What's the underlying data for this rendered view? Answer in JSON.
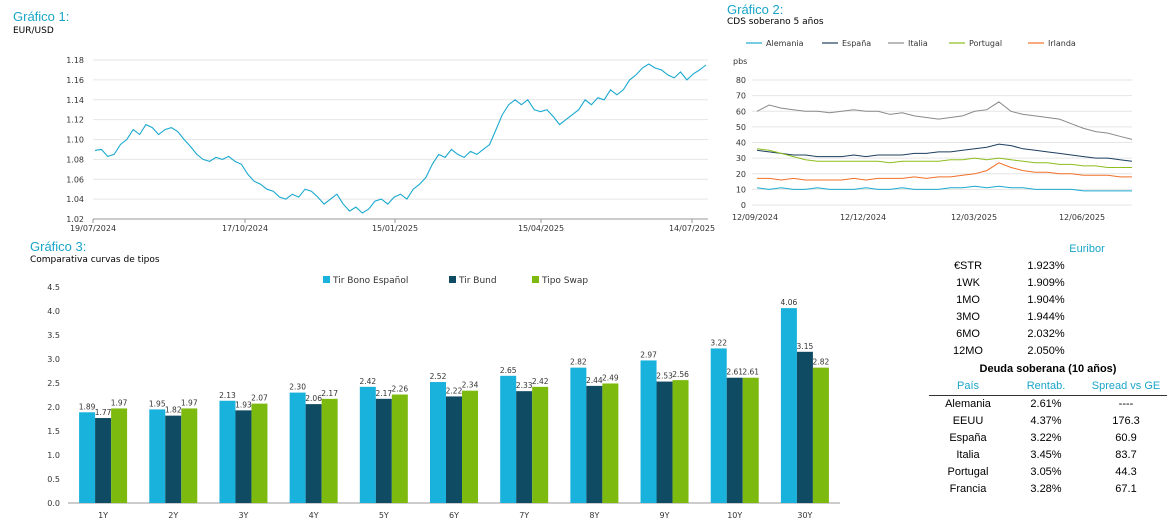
{
  "chart_data": [
    {
      "id": "g1",
      "type": "line",
      "title": "Gráfico 1:",
      "subtitle": "EUR/USD",
      "color": "#1ba9cf",
      "ylim": [
        1.02,
        1.18
      ],
      "yticks": [
        "1.02",
        "1.04",
        "1.06",
        "1.08",
        "1.10",
        "1.12",
        "1.14",
        "1.16",
        "1.18"
      ],
      "xticks": [
        "19/07/2024",
        "17/10/2024",
        "15/01/2025",
        "15/04/2025",
        "14/07/2025"
      ],
      "series": [
        {
          "values": [
            1.089,
            1.09,
            1.083,
            1.085,
            1.095,
            1.1,
            1.11,
            1.105,
            1.115,
            1.112,
            1.105,
            1.11,
            1.112,
            1.108,
            1.1,
            1.093,
            1.085,
            1.08,
            1.078,
            1.082,
            1.08,
            1.083,
            1.078,
            1.075,
            1.065,
            1.058,
            1.055,
            1.05,
            1.048,
            1.042,
            1.04,
            1.045,
            1.042,
            1.05,
            1.048,
            1.042,
            1.035,
            1.04,
            1.045,
            1.035,
            1.028,
            1.032,
            1.026,
            1.03,
            1.038,
            1.04,
            1.035,
            1.042,
            1.045,
            1.04,
            1.05,
            1.055,
            1.062,
            1.075,
            1.085,
            1.082,
            1.09,
            1.085,
            1.082,
            1.088,
            1.085,
            1.09,
            1.095,
            1.11,
            1.125,
            1.135,
            1.14,
            1.135,
            1.14,
            1.13,
            1.128,
            1.13,
            1.123,
            1.115,
            1.12,
            1.125,
            1.13,
            1.14,
            1.135,
            1.142,
            1.14,
            1.15,
            1.145,
            1.15,
            1.16,
            1.165,
            1.172,
            1.176,
            1.172,
            1.17,
            1.165,
            1.162,
            1.168,
            1.16,
            1.166,
            1.17,
            1.175
          ]
        }
      ]
    },
    {
      "id": "g2",
      "type": "line",
      "title": "Gráfico 2:",
      "subtitle": "CDS soberano 5 años",
      "ylabel": "pbs",
      "ylim": [
        0,
        80
      ],
      "yticks": [
        "0",
        "10",
        "20",
        "30",
        "40",
        "50",
        "60",
        "70",
        "80"
      ],
      "xticks": [
        "12/09/2024",
        "12/12/2024",
        "12/03/2025",
        "12/06/2025"
      ],
      "series": [
        {
          "name": "Alemania",
          "color": "#1ba9cf",
          "values": [
            11,
            10,
            11,
            10,
            10,
            11,
            10,
            10,
            10,
            11,
            10,
            10,
            11,
            10,
            10,
            10,
            11,
            11,
            12,
            11,
            12,
            11,
            11,
            10,
            10,
            10,
            10,
            9,
            9,
            9,
            9,
            9
          ]
        },
        {
          "name": "España",
          "color": "#1c3f5e",
          "values": [
            35,
            34,
            33,
            32,
            32,
            31,
            31,
            31,
            32,
            31,
            32,
            32,
            32,
            33,
            33,
            34,
            34,
            35,
            36,
            37,
            39,
            38,
            36,
            35,
            34,
            33,
            32,
            31,
            30,
            30,
            29,
            28
          ]
        },
        {
          "name": "Italia",
          "color": "#8a8a8a",
          "values": [
            60,
            64,
            62,
            61,
            60,
            60,
            59,
            60,
            61,
            60,
            60,
            58,
            59,
            57,
            56,
            55,
            56,
            57,
            60,
            61,
            66,
            60,
            58,
            57,
            56,
            55,
            52,
            49,
            47,
            46,
            44,
            42
          ]
        },
        {
          "name": "Portugal",
          "color": "#8dbe1e",
          "values": [
            36,
            35,
            33,
            31,
            29,
            28,
            28,
            28,
            28,
            28,
            28,
            27,
            28,
            28,
            28,
            28,
            29,
            29,
            30,
            29,
            30,
            29,
            28,
            27,
            27,
            26,
            26,
            25,
            25,
            24,
            24,
            24
          ]
        },
        {
          "name": "Irlanda",
          "color": "#f07028",
          "values": [
            17,
            17,
            16,
            17,
            16,
            16,
            16,
            16,
            17,
            16,
            17,
            17,
            17,
            18,
            17,
            18,
            18,
            19,
            20,
            22,
            27,
            24,
            22,
            21,
            21,
            20,
            20,
            19,
            19,
            19,
            18,
            18
          ]
        }
      ]
    },
    {
      "id": "g3",
      "type": "bar",
      "title": "Gráfico 3:",
      "subtitle": "Comparativa curvas de tipos",
      "ylim": [
        0,
        4.5
      ],
      "yticks": [
        "0.0",
        "0.5",
        "1.0",
        "1.5",
        "2.0",
        "2.5",
        "3.0",
        "3.5",
        "4.0",
        "4.5"
      ],
      "categories": [
        "1Y",
        "2Y",
        "3Y",
        "4Y",
        "5Y",
        "6Y",
        "7Y",
        "8Y",
        "9Y",
        "10Y",
        "30Y"
      ],
      "series": [
        {
          "name": "Tir Bono Español",
          "color": "#19b2dc",
          "values": [
            1.89,
            1.95,
            2.13,
            2.3,
            2.42,
            2.52,
            2.65,
            2.82,
            2.97,
            3.22,
            4.06
          ],
          "labels": [
            "1.89",
            "1.95",
            "2.13",
            "2.30",
            "2.42",
            "2.52",
            "2.65",
            "2.82",
            "2.97",
            "3.22",
            "4.06"
          ]
        },
        {
          "name": "Tir Bund",
          "color": "#0f4b63",
          "values": [
            1.77,
            1.82,
            1.93,
            2.06,
            2.17,
            2.22,
            2.33,
            2.44,
            2.53,
            2.61,
            3.15
          ],
          "labels": [
            "1.77",
            "1.82",
            "1.93",
            "2.06",
            "2.17",
            "2.22",
            "2.33",
            "2.44",
            "2.53",
            "2.61",
            "3.15"
          ]
        },
        {
          "name": "Tipo Swap",
          "color": "#7dba10",
          "values": [
            1.97,
            1.97,
            2.07,
            2.17,
            2.26,
            2.34,
            2.42,
            2.49,
            2.56,
            2.61,
            2.82
          ],
          "labels": [
            "1.97",
            "1.97",
            "2.07",
            "2.17",
            "2.26",
            "2.34",
            "2.42",
            "2.49",
            "2.56",
            "2.61",
            "2.82"
          ]
        }
      ]
    }
  ],
  "euribor": {
    "header": "Euribor",
    "rows": [
      {
        "label": "€STR",
        "value": "1.923%"
      },
      {
        "label": "1WK",
        "value": "1.909%"
      },
      {
        "label": "1MO",
        "value": "1.904%"
      },
      {
        "label": "3MO",
        "value": "1.944%"
      },
      {
        "label": "6MO",
        "value": "2.032%"
      },
      {
        "label": "12MO",
        "value": "2.050%"
      }
    ]
  },
  "deuda": {
    "title": "Deuda soberana (10 años)",
    "columns": [
      "País",
      "Rentab.",
      "Spread vs GE"
    ],
    "rows": [
      {
        "pais": "Alemania",
        "rentab": "2.61%",
        "spread": "----"
      },
      {
        "pais": "EEUU",
        "rentab": "4.37%",
        "spread": "176.3"
      },
      {
        "pais": "España",
        "rentab": "3.22%",
        "spread": "60.9"
      },
      {
        "pais": "Italia",
        "rentab": "3.45%",
        "spread": "83.7"
      },
      {
        "pais": "Portugal",
        "rentab": "3.05%",
        "spread": "44.3"
      },
      {
        "pais": "Francia",
        "rentab": "3.28%",
        "spread": "67.1"
      }
    ]
  }
}
